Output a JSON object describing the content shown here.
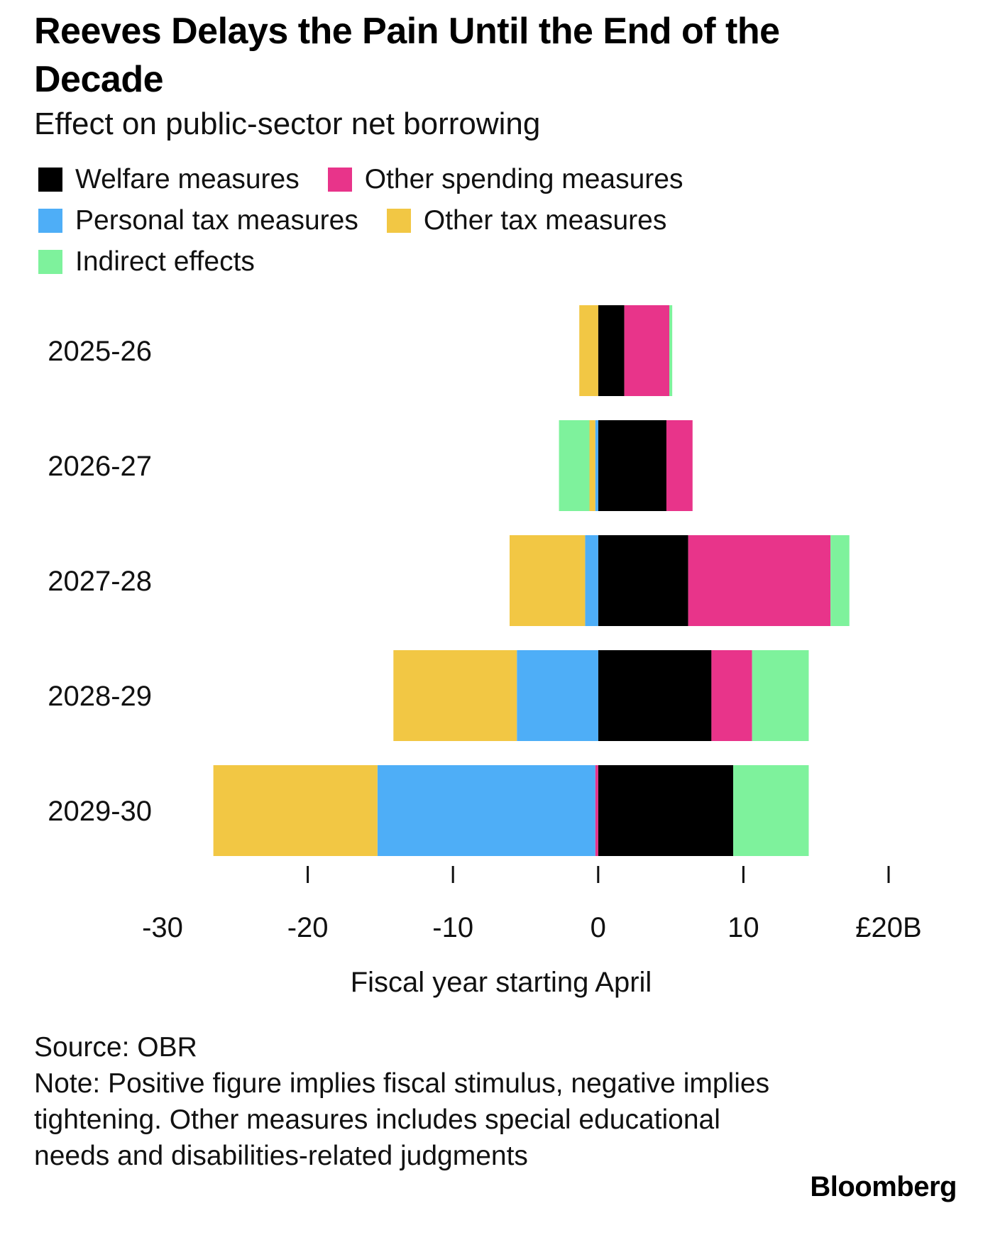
{
  "chart_data": {
    "type": "bar",
    "orientation": "horizontal",
    "stacked": true,
    "title": "Reeves Delays the Pain Until the End of the Decade",
    "subtitle": "Effect on public-sector net borrowing",
    "xlabel": "Fiscal year starting April",
    "xlim": [
      -30,
      20
    ],
    "x_ticks": [
      "-30",
      "-20",
      "-10",
      "0",
      "10",
      "£20B"
    ],
    "categories": [
      "2025-26",
      "2026-27",
      "2027-28",
      "2028-29",
      "2029-30"
    ],
    "series": [
      {
        "name": "Welfare measures",
        "color": "#000000",
        "values": [
          1.8,
          4.7,
          6.2,
          7.8,
          9.3
        ]
      },
      {
        "name": "Other spending measures",
        "color": "#e8348a",
        "values": [
          3.1,
          1.8,
          9.8,
          2.8,
          -0.2
        ]
      },
      {
        "name": "Personal tax measures",
        "color": "#4eaef7",
        "values": [
          0,
          -0.2,
          -0.9,
          -5.6,
          -15.0
        ]
      },
      {
        "name": "Other tax measures",
        "color": "#f2c744",
        "values": [
          -1.3,
          -0.4,
          -5.2,
          -8.5,
          -11.3
        ]
      },
      {
        "name": "Indirect effects",
        "color": "#7ef29c",
        "values": [
          0.2,
          -2.1,
          1.3,
          3.9,
          5.2
        ]
      }
    ],
    "legend_position": "top",
    "grid": false
  },
  "footer": {
    "source": "Source: OBR",
    "note": "Note: Positive figure implies fiscal stimulus, negative implies tightening. Other measures includes special educational needs and disabilities-related judgments"
  },
  "brand": "Bloomberg"
}
